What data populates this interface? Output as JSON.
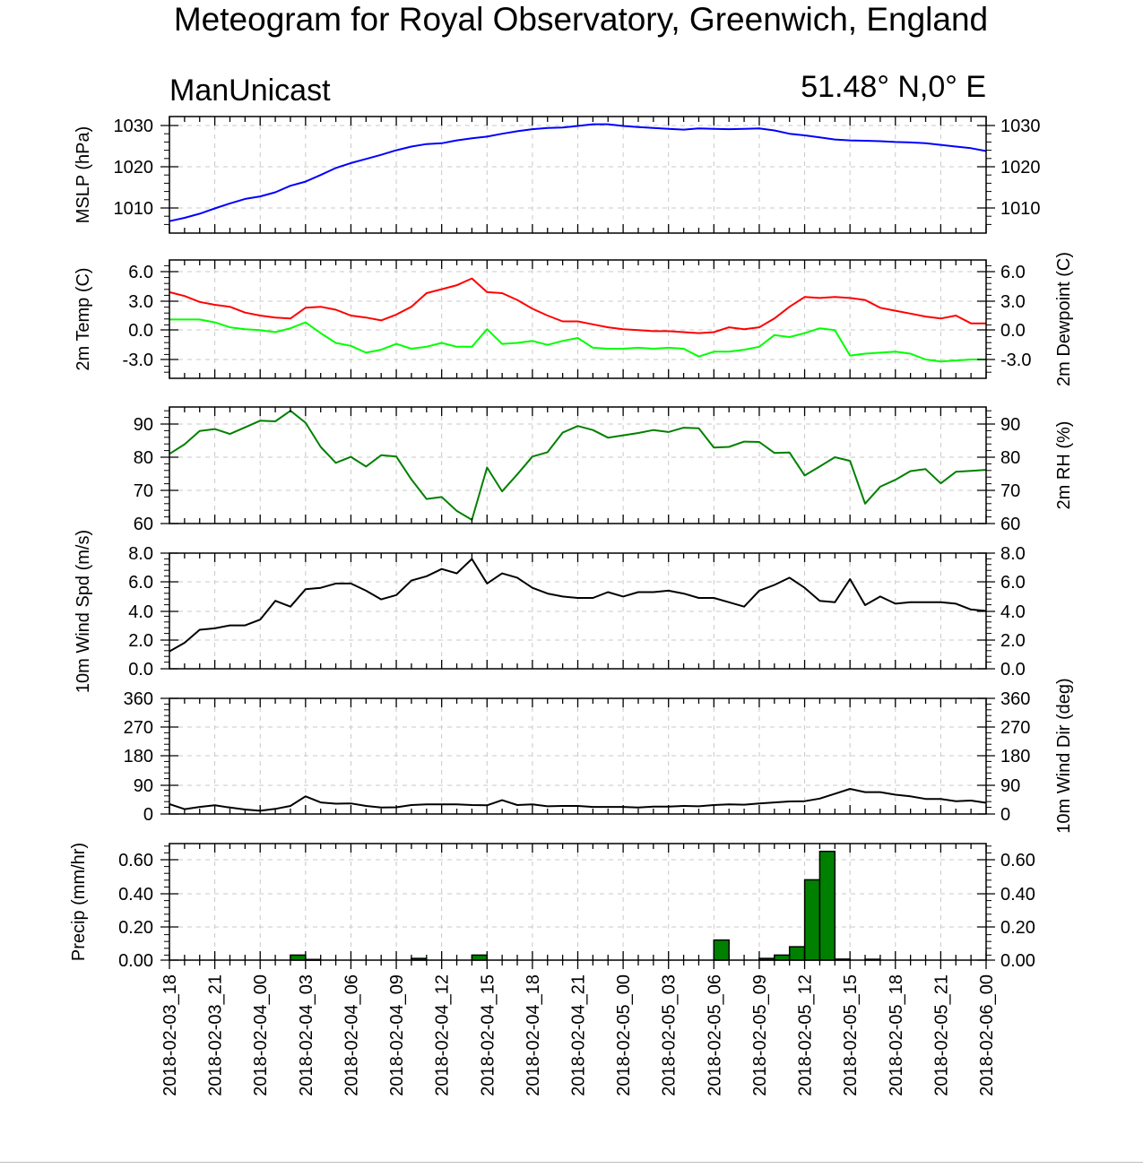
{
  "header": {
    "title": "Meteogram for Royal Observatory, Greenwich, England",
    "model": "ManUnicast",
    "location": "51.48° N,0° E"
  },
  "chart_data": [
    {
      "type": "line",
      "ylabel": "MSLP (hPa)",
      "yticks": [
        "1010",
        "1020",
        "1030"
      ],
      "ylim": [
        1004,
        1032
      ],
      "grid": true,
      "x_hours": [
        0,
        1,
        2,
        3,
        4,
        5,
        6,
        7,
        8,
        9,
        10,
        11,
        12,
        13,
        14,
        15,
        16,
        17,
        18,
        19,
        20,
        21,
        22,
        23,
        24,
        25,
        26,
        27,
        28,
        29,
        30,
        31,
        32,
        33,
        34,
        35,
        36,
        37,
        38,
        39,
        40,
        41,
        42,
        43,
        44,
        45,
        46,
        47,
        48,
        49,
        50,
        51,
        52,
        53,
        54
      ],
      "series": [
        {
          "color": "#0000ff",
          "values": [
            1006.8,
            1007.6,
            1008.6,
            1009.9,
            1011.1,
            1012.2,
            1012.8,
            1013.8,
            1015.4,
            1016.4,
            1018.0,
            1019.7,
            1020.9,
            1021.9,
            1022.9,
            1024.0,
            1024.9,
            1025.5,
            1025.7,
            1026.4,
            1026.9,
            1027.3,
            1028.0,
            1028.6,
            1029.1,
            1029.4,
            1029.5,
            1029.9,
            1030.3,
            1030.3,
            1029.9,
            1029.6,
            1029.4,
            1029.2,
            1029.0,
            1029.3,
            1029.2,
            1029.1,
            1029.2,
            1029.3,
            1028.8,
            1028.0,
            1027.6,
            1027.1,
            1026.6,
            1026.4,
            1026.3,
            1026.2,
            1026.0,
            1025.9,
            1025.7,
            1025.3,
            1024.9,
            1024.5,
            1023.8
          ]
        }
      ]
    },
    {
      "type": "line",
      "ylabel": "2m Temp (C)",
      "ylabel_right": "2m Dewpoint (C)",
      "yticks": [
        "6.0",
        "3.0",
        "0.0",
        "-3.0"
      ],
      "ylim": [
        -5,
        7
      ],
      "grid": true,
      "x_hours": [
        0,
        1,
        2,
        3,
        4,
        5,
        6,
        7,
        8,
        9,
        10,
        11,
        12,
        13,
        14,
        15,
        16,
        17,
        18,
        19,
        20,
        21,
        22,
        23,
        24,
        25,
        26,
        27,
        28,
        29,
        30,
        31,
        32,
        33,
        34,
        35,
        36,
        37,
        38,
        39,
        40,
        41,
        42,
        43,
        44,
        45,
        46,
        47,
        48,
        49,
        50,
        51,
        52,
        53,
        54
      ],
      "series": [
        {
          "name": "2m Temp (C)",
          "color": "#ff0000",
          "values": [
            3.9,
            3.5,
            2.9,
            2.6,
            2.4,
            1.8,
            1.5,
            1.3,
            1.2,
            2.3,
            2.4,
            2.1,
            1.5,
            1.3,
            1.0,
            1.6,
            2.4,
            3.8,
            4.2,
            4.6,
            5.3,
            3.9,
            3.8,
            3.1,
            2.2,
            1.5,
            0.9,
            0.9,
            0.6,
            0.3,
            0.1,
            0.0,
            -0.1,
            -0.1,
            -0.2,
            -0.3,
            -0.2,
            0.3,
            0.1,
            0.3,
            1.2,
            2.4,
            3.4,
            3.3,
            3.4,
            3.3,
            3.1,
            2.3,
            2.0,
            1.7,
            1.4,
            1.2,
            1.5,
            0.7,
            0.7
          ]
        },
        {
          "name": "2m Dewpoint (C)",
          "color": "#00ff00",
          "values": [
            1.1,
            1.1,
            1.1,
            0.8,
            0.3,
            0.1,
            0.0,
            -0.2,
            0.2,
            0.8,
            -0.3,
            -1.3,
            -1.6,
            -2.3,
            -2.0,
            -1.4,
            -1.9,
            -1.7,
            -1.3,
            -1.7,
            -1.7,
            0.1,
            -1.4,
            -1.3,
            -1.1,
            -1.5,
            -1.1,
            -0.8,
            -1.8,
            -1.9,
            -1.9,
            -1.8,
            -1.9,
            -1.8,
            -1.9,
            -2.7,
            -2.2,
            -2.2,
            -2.0,
            -1.7,
            -0.5,
            -0.7,
            -0.3,
            0.2,
            0.0,
            -2.6,
            -2.4,
            -2.3,
            -2.2,
            -2.4,
            -3.0,
            -3.2,
            -3.1,
            -3.0,
            -3.0
          ]
        }
      ]
    },
    {
      "type": "line",
      "ylabel_right": "2m RH (%)",
      "yticks": [
        "90",
        "80",
        "70",
        "60"
      ],
      "ylim": [
        60,
        96
      ],
      "grid": true,
      "x_hours": [
        0,
        1,
        2,
        3,
        4,
        5,
        6,
        7,
        8,
        9,
        10,
        11,
        12,
        13,
        14,
        15,
        16,
        17,
        18,
        19,
        20,
        21,
        22,
        23,
        24,
        25,
        26,
        27,
        28,
        29,
        30,
        31,
        32,
        33,
        34,
        35,
        36,
        37,
        38,
        39,
        40,
        41,
        42,
        43,
        44,
        45,
        46,
        47,
        48,
        49,
        50,
        51,
        52,
        53,
        54
      ],
      "series": [
        {
          "name": "2m RH (%)",
          "color": "#008000",
          "values": [
            81.0,
            83.9,
            87.9,
            88.5,
            87.0,
            89.0,
            91.0,
            90.8,
            94.0,
            90.4,
            83.1,
            78.3,
            80.1,
            77.2,
            80.6,
            80.2,
            73.3,
            67.4,
            68.0,
            63.8,
            61.1,
            76.9,
            69.7,
            74.8,
            80.2,
            81.5,
            87.4,
            89.4,
            88.2,
            85.9,
            86.6,
            87.3,
            88.2,
            87.6,
            88.9,
            88.7,
            82.9,
            83.1,
            84.7,
            84.6,
            81.3,
            81.4,
            74.5,
            77.2,
            80.0,
            78.9,
            66.0,
            71.1,
            73.2,
            75.8,
            76.4,
            72.1,
            75.6,
            75.9,
            76.2
          ]
        }
      ]
    },
    {
      "type": "line",
      "ylabel": "10m Wind Spd (m/s)",
      "yticks": [
        "8.0",
        "6.0",
        "4.0",
        "2.0",
        "0.0"
      ],
      "ylim": [
        0,
        8
      ],
      "grid": true,
      "x_hours": [
        0,
        1,
        2,
        3,
        4,
        5,
        6,
        7,
        8,
        9,
        10,
        11,
        12,
        13,
        14,
        15,
        16,
        17,
        18,
        19,
        20,
        21,
        22,
        23,
        24,
        25,
        26,
        27,
        28,
        29,
        30,
        31,
        32,
        33,
        34,
        35,
        36,
        37,
        38,
        39,
        40,
        41,
        42,
        43,
        44,
        45,
        46,
        47,
        48,
        49,
        50,
        51,
        52,
        53,
        54
      ],
      "series": [
        {
          "name": "10m Wind Spd (m/s)",
          "color": "#000000",
          "values": [
            1.2,
            1.8,
            2.7,
            2.8,
            3.0,
            3.0,
            3.4,
            4.7,
            4.3,
            5.5,
            5.6,
            5.9,
            5.9,
            5.4,
            4.8,
            5.1,
            6.1,
            6.4,
            6.9,
            6.6,
            7.6,
            5.9,
            6.6,
            6.3,
            5.6,
            5.2,
            5.0,
            4.9,
            4.9,
            5.3,
            5.0,
            5.3,
            5.3,
            5.4,
            5.2,
            4.9,
            4.9,
            4.6,
            4.3,
            5.4,
            5.8,
            6.3,
            5.6,
            4.7,
            4.6,
            6.2,
            4.4,
            5.0,
            4.5,
            4.6,
            4.6,
            4.6,
            4.5,
            4.1,
            4.0
          ]
        }
      ]
    },
    {
      "type": "line",
      "ylabel_right": "10m Wind Dir (deg)",
      "yticks": [
        "360",
        "270",
        "180",
        "90",
        "0"
      ],
      "ylim": [
        0,
        360
      ],
      "grid": true,
      "x_hours": [
        0,
        1,
        2,
        3,
        4,
        5,
        6,
        7,
        8,
        9,
        10,
        11,
        12,
        13,
        14,
        15,
        16,
        17,
        18,
        19,
        20,
        21,
        22,
        23,
        24,
        25,
        26,
        27,
        28,
        29,
        30,
        31,
        32,
        33,
        34,
        35,
        36,
        37,
        38,
        39,
        40,
        41,
        42,
        43,
        44,
        45,
        46,
        47,
        48,
        49,
        50,
        51,
        52,
        53,
        54
      ],
      "series": [
        {
          "name": "10m Wind Dir (deg)",
          "color": "#000000",
          "values": [
            31,
            15,
            22,
            27,
            20,
            14,
            10,
            16,
            25,
            55,
            36,
            32,
            33,
            25,
            20,
            21,
            28,
            30,
            30,
            30,
            28,
            27,
            43,
            28,
            30,
            24,
            25,
            25,
            22,
            22,
            22,
            20,
            23,
            23,
            25,
            24,
            28,
            30,
            29,
            33,
            36,
            39,
            40,
            48,
            63,
            78,
            68,
            68,
            60,
            55,
            47,
            47,
            40,
            42,
            35
          ]
        }
      ]
    },
    {
      "type": "bar",
      "ylabel": "Precip (mm/hr)",
      "yticks": [
        "0.60",
        "0.40",
        "0.20",
        "0.00"
      ],
      "ylim": [
        0,
        0.7
      ],
      "grid": true,
      "bar_color": "#008000",
      "x_hours": [
        9,
        10,
        17,
        21,
        37,
        40,
        41,
        42,
        43,
        44,
        45,
        47
      ],
      "values": [
        0.03,
        0.004,
        0.01,
        0.03,
        0.12,
        0.01,
        0.03,
        0.08,
        0.48,
        0.65,
        0.006,
        0.005
      ]
    }
  ],
  "x_axis": {
    "ticklabels": [
      "2018-02-03_18",
      "2018-02-03_21",
      "2018-02-04_00",
      "2018-02-04_03",
      "2018-02-04_06",
      "2018-02-04_09",
      "2018-02-04_12",
      "2018-02-04_15",
      "2018-02-04_18",
      "2018-02-04_21",
      "2018-02-05_00",
      "2018-02-05_03",
      "2018-02-05_06",
      "2018-02-05_09",
      "2018-02-05_12",
      "2018-02-05_15",
      "2018-02-05_18",
      "2018-02-05_21",
      "2018-02-06_00"
    ],
    "tick_step_hours": 3
  }
}
